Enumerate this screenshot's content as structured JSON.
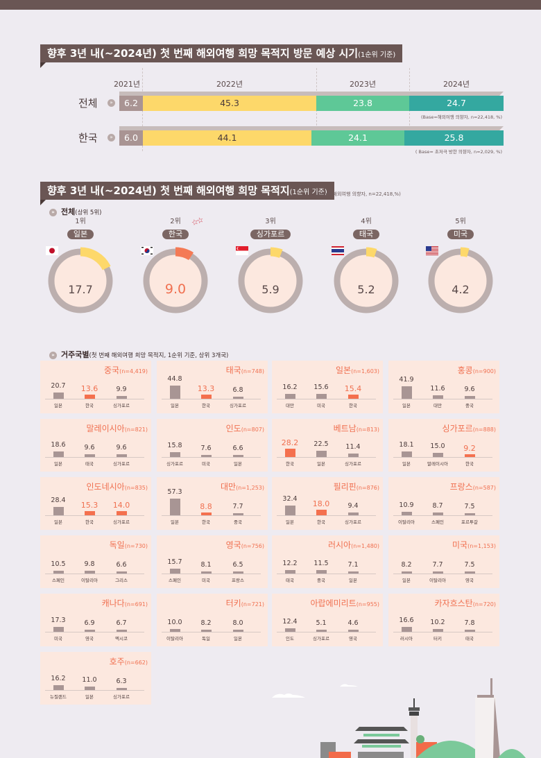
{
  "section1": {
    "title": "향후 3년 내(~2024년) 첫 번째 해외여행 희망 목적지 방문 예상 시기",
    "title_suffix": "(1순위 기준)",
    "years": [
      "2021년",
      "2022년",
      "2023년",
      "2024년"
    ],
    "rows": [
      {
        "label": "전체",
        "values": [
          "6.2",
          "45.3",
          "23.8",
          "24.7"
        ],
        "base": "(Base=해외여행 의향자, n=22,418, %)"
      },
      {
        "label": "한국",
        "values": [
          "6.0",
          "44.1",
          "24.1",
          "25.8"
        ],
        "base": "( Base= 초저극 방한 의향자, n=2,029, %)"
      }
    ],
    "colors": [
      "#a99493",
      "#fdd86a",
      "#5ec897",
      "#34a8a0"
    ]
  },
  "section2": {
    "title": "향후 3년 내(~2024년) 첫 번째 해외여행 희망 목적지",
    "title_suffix": "(1순위 기준)",
    "base": "(Base=해외여행 의향자, n=22,418,%)",
    "subhead": "전체",
    "subhead_suffix": "(상위 5위)",
    "icon": "chevron-double-down-icon",
    "top5": [
      {
        "rank": "1위",
        "country": "일본",
        "value": "17.7",
        "flag": "japan-flag-icon"
      },
      {
        "rank": "2위",
        "country": "한국",
        "value": "9.0",
        "flag": "korea-flag-icon",
        "highlight": true
      },
      {
        "rank": "3위",
        "country": "싱가포르",
        "value": "5.9",
        "flag": "singapore-flag-icon"
      },
      {
        "rank": "4위",
        "country": "태국",
        "value": "5.2",
        "flag": "thailand-flag-icon"
      },
      {
        "rank": "5위",
        "country": "미국",
        "value": "4.2",
        "flag": "usa-flag-icon"
      }
    ],
    "stars": "☆☆"
  },
  "section3": {
    "subhead": "거주국별",
    "subhead_suffix": "(첫 번째 해외여행 희망 목적지, 1순위 기준, 상위 3개국)",
    "cards": [
      {
        "country": "중국",
        "n": "(n=4,419)",
        "items": [
          {
            "label": "일본",
            "value": "20.7"
          },
          {
            "label": "한국",
            "value": "13.6",
            "hl": true
          },
          {
            "label": "싱가포르",
            "value": "9.9"
          }
        ]
      },
      {
        "country": "태국",
        "n": "(n=748)",
        "items": [
          {
            "label": "일본",
            "value": "44.8"
          },
          {
            "label": "한국",
            "value": "13.3",
            "hl": true
          },
          {
            "label": "싱가포르",
            "value": "6.8"
          }
        ]
      },
      {
        "country": "일본",
        "n": "(n=1,603)",
        "items": [
          {
            "label": "대만",
            "value": "16.2"
          },
          {
            "label": "미국",
            "value": "15.6"
          },
          {
            "label": "한국",
            "value": "15.4",
            "hl": true
          }
        ]
      },
      {
        "country": "홍콩",
        "n": "(n=900)",
        "items": [
          {
            "label": "일본",
            "value": "41.9"
          },
          {
            "label": "대만",
            "value": "11.6"
          },
          {
            "label": "중국",
            "value": "9.6"
          }
        ]
      },
      {
        "country": "말레이시아",
        "n": "(n=821)",
        "items": [
          {
            "label": "일본",
            "value": "18.6"
          },
          {
            "label": "태국",
            "value": "9.6"
          },
          {
            "label": "싱가포르",
            "value": "9.6"
          }
        ]
      },
      {
        "country": "인도",
        "n": "(n=807)",
        "items": [
          {
            "label": "싱가포르",
            "value": "15.8"
          },
          {
            "label": "미국",
            "value": "7.6"
          },
          {
            "label": "일본",
            "value": "6.6"
          }
        ]
      },
      {
        "country": "베트남",
        "n": "(n=813)",
        "items": [
          {
            "label": "한국",
            "value": "28.2",
            "hl": true
          },
          {
            "label": "일본",
            "value": "22.5"
          },
          {
            "label": "싱가포르",
            "value": "11.4"
          }
        ]
      },
      {
        "country": "싱가포르",
        "n": "(n=888)",
        "items": [
          {
            "label": "일본",
            "value": "18.1"
          },
          {
            "label": "말레이시아",
            "value": "15.0"
          },
          {
            "label": "한국",
            "value": "9.2",
            "hl": true
          }
        ]
      },
      {
        "country": "인도네시아",
        "n": "(n=835)",
        "items": [
          {
            "label": "일본",
            "value": "28.4"
          },
          {
            "label": "한국",
            "value": "15.3",
            "hl": true
          },
          {
            "label": "싱가포르",
            "value": "14.0",
            "hl": true
          }
        ]
      },
      {
        "country": "대만",
        "n": "(n=1,253)",
        "items": [
          {
            "label": "일본",
            "value": "57.3"
          },
          {
            "label": "한국",
            "value": "8.8",
            "hl": true
          },
          {
            "label": "중국",
            "value": "7.7"
          }
        ]
      },
      {
        "country": "필리핀",
        "n": "(n=876)",
        "items": [
          {
            "label": "일본",
            "value": "32.4"
          },
          {
            "label": "한국",
            "value": "18.0",
            "hl": true
          },
          {
            "label": "싱가포르",
            "value": "9.4"
          }
        ]
      },
      {
        "country": "프랑스",
        "n": "(n=587)",
        "items": [
          {
            "label": "이탈리아",
            "value": "10.9"
          },
          {
            "label": "스페인",
            "value": "8.7"
          },
          {
            "label": "포르투갈",
            "value": "7.5"
          }
        ]
      },
      {
        "country": "독일",
        "n": "(n=730)",
        "items": [
          {
            "label": "스페인",
            "value": "10.5"
          },
          {
            "label": "이탈리아",
            "value": "9.8"
          },
          {
            "label": "그리스",
            "value": "6.6"
          }
        ]
      },
      {
        "country": "영국",
        "n": "(n=756)",
        "items": [
          {
            "label": "스페인",
            "value": "15.7"
          },
          {
            "label": "미국",
            "value": "8.1"
          },
          {
            "label": "프랑스",
            "value": "6.5"
          }
        ]
      },
      {
        "country": "러시아",
        "n": "(n=1,480)",
        "items": [
          {
            "label": "태국",
            "value": "12.2"
          },
          {
            "label": "중국",
            "value": "11.5"
          },
          {
            "label": "일본",
            "value": "7.1"
          }
        ]
      },
      {
        "country": "미국",
        "n": "(n=1,153)",
        "items": [
          {
            "label": "일본",
            "value": "8.2"
          },
          {
            "label": "이탈리아",
            "value": "7.7"
          },
          {
            "label": "영국",
            "value": "7.5"
          }
        ]
      },
      {
        "country": "캐나다",
        "n": "(n=691)",
        "items": [
          {
            "label": "미국",
            "value": "17.3"
          },
          {
            "label": "영국",
            "value": "6.9"
          },
          {
            "label": "멕시코",
            "value": "6.7"
          }
        ]
      },
      {
        "country": "터키",
        "n": "(n=721)",
        "items": [
          {
            "label": "이탈리아",
            "value": "10.0"
          },
          {
            "label": "독일",
            "value": "8.2"
          },
          {
            "label": "일본",
            "value": "8.0"
          }
        ]
      },
      {
        "country": "아랍에미리트",
        "n": "(n=955)",
        "items": [
          {
            "label": "인도",
            "value": "12.4"
          },
          {
            "label": "싱가포르",
            "value": "5.1"
          },
          {
            "label": "영국",
            "value": "4.6"
          }
        ]
      },
      {
        "country": "카자흐스탄",
        "n": "(n=720)",
        "items": [
          {
            "label": "러시아",
            "value": "16.6"
          },
          {
            "label": "터키",
            "value": "10.2"
          },
          {
            "label": "태국",
            "value": "7.8"
          }
        ]
      },
      {
        "country": "호주",
        "n": "(n=662)",
        "items": [
          {
            "label": "뉴질랜드",
            "value": "16.2"
          },
          {
            "label": "일본",
            "value": "11.0"
          },
          {
            "label": "싱가포르",
            "value": "6.3"
          }
        ]
      }
    ]
  },
  "chart_data": [
    {
      "type": "bar",
      "orientation": "horizontal-stacked",
      "title": "향후 3년 내(~2024년) 첫 번째 해외여행 희망 목적지 방문 예상 시기(1순위 기준)",
      "categories": [
        "전체",
        "한국"
      ],
      "series": [
        {
          "name": "2021년",
          "values": [
            6.2,
            6.0
          ]
        },
        {
          "name": "2022년",
          "values": [
            45.3,
            44.1
          ]
        },
        {
          "name": "2023년",
          "values": [
            23.8,
            24.1
          ]
        },
        {
          "name": "2024년",
          "values": [
            24.7,
            25.8
          ]
        }
      ],
      "unit": "%"
    },
    {
      "type": "pie",
      "title": "향후 3년 내(~2024년) 첫 번째 해외여행 희망 목적지(1순위 기준) - 전체(상위 5위)",
      "categories": [
        "일본",
        "한국",
        "싱가포르",
        "태국",
        "미국"
      ],
      "values": [
        17.7,
        9.0,
        5.9,
        5.2,
        4.2
      ],
      "unit": "%"
    },
    {
      "type": "bar",
      "title": "거주국별 첫 번째 해외여행 희망 목적지(1순위 기준, 상위 3개국)",
      "groups": [
        {
          "country": "중국",
          "n": 4419,
          "categories": [
            "일본",
            "한국",
            "싱가포르"
          ],
          "values": [
            20.7,
            13.6,
            9.9
          ]
        },
        {
          "country": "태국",
          "n": 748,
          "categories": [
            "일본",
            "한국",
            "싱가포르"
          ],
          "values": [
            44.8,
            13.3,
            6.8
          ]
        },
        {
          "country": "일본",
          "n": 1603,
          "categories": [
            "대만",
            "미국",
            "한국"
          ],
          "values": [
            16.2,
            15.6,
            15.4
          ]
        },
        {
          "country": "홍콩",
          "n": 900,
          "categories": [
            "일본",
            "대만",
            "중국"
          ],
          "values": [
            41.9,
            11.6,
            9.6
          ]
        },
        {
          "country": "말레이시아",
          "n": 821,
          "categories": [
            "일본",
            "태국",
            "싱가포르"
          ],
          "values": [
            18.6,
            9.6,
            9.6
          ]
        },
        {
          "country": "인도",
          "n": 807,
          "categories": [
            "싱가포르",
            "미국",
            "일본"
          ],
          "values": [
            15.8,
            7.6,
            6.6
          ]
        },
        {
          "country": "베트남",
          "n": 813,
          "categories": [
            "한국",
            "일본",
            "싱가포르"
          ],
          "values": [
            28.2,
            22.5,
            11.4
          ]
        },
        {
          "country": "싱가포르",
          "n": 888,
          "categories": [
            "일본",
            "말레이시아",
            "한국"
          ],
          "values": [
            18.1,
            15.0,
            9.2
          ]
        },
        {
          "country": "인도네시아",
          "n": 835,
          "categories": [
            "일본",
            "한국",
            "싱가포르"
          ],
          "values": [
            28.4,
            15.3,
            14.0
          ]
        },
        {
          "country": "대만",
          "n": 1253,
          "categories": [
            "일본",
            "한국",
            "중국"
          ],
          "values": [
            57.3,
            8.8,
            7.7
          ]
        },
        {
          "country": "필리핀",
          "n": 876,
          "categories": [
            "일본",
            "한국",
            "싱가포르"
          ],
          "values": [
            32.4,
            18.0,
            9.4
          ]
        },
        {
          "country": "프랑스",
          "n": 587,
          "categories": [
            "이탈리아",
            "스페인",
            "포르투갈"
          ],
          "values": [
            10.9,
            8.7,
            7.5
          ]
        },
        {
          "country": "독일",
          "n": 730,
          "categories": [
            "스페인",
            "이탈리아",
            "그리스"
          ],
          "values": [
            10.5,
            9.8,
            6.6
          ]
        },
        {
          "country": "영국",
          "n": 756,
          "categories": [
            "스페인",
            "미국",
            "프랑스"
          ],
          "values": [
            15.7,
            8.1,
            6.5
          ]
        },
        {
          "country": "러시아",
          "n": 1480,
          "categories": [
            "태국",
            "중국",
            "일본"
          ],
          "values": [
            12.2,
            11.5,
            7.1
          ]
        },
        {
          "country": "미국",
          "n": 1153,
          "categories": [
            "일본",
            "이탈리아",
            "영국"
          ],
          "values": [
            8.2,
            7.7,
            7.5
          ]
        },
        {
          "country": "캐나다",
          "n": 691,
          "categories": [
            "미국",
            "영국",
            "멕시코"
          ],
          "values": [
            17.3,
            6.9,
            6.7
          ]
        },
        {
          "country": "터키",
          "n": 721,
          "categories": [
            "이탈리아",
            "독일",
            "일본"
          ],
          "values": [
            10.0,
            8.2,
            8.0
          ]
        },
        {
          "country": "아랍에미리트",
          "n": 955,
          "categories": [
            "인도",
            "싱가포르",
            "영국"
          ],
          "values": [
            12.4,
            5.1,
            4.6
          ]
        },
        {
          "country": "카자흐스탄",
          "n": 720,
          "categories": [
            "러시아",
            "터키",
            "태국"
          ],
          "values": [
            16.6,
            10.2,
            7.8
          ]
        },
        {
          "country": "호주",
          "n": 662,
          "categories": [
            "뉴질랜드",
            "일본",
            "싱가포르"
          ],
          "values": [
            16.2,
            11.0,
            6.3
          ]
        }
      ],
      "unit": "%"
    }
  ]
}
